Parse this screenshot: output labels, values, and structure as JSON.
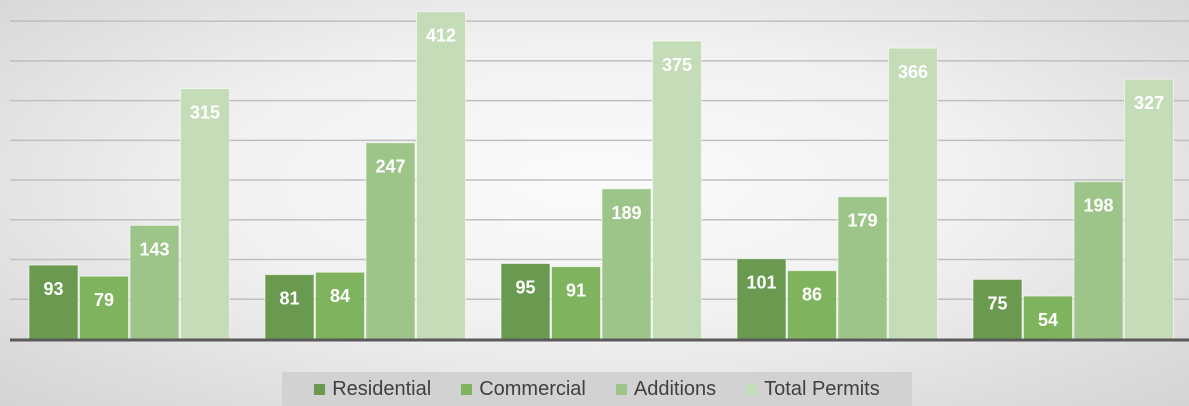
{
  "chart_data": {
    "type": "bar",
    "categories": [
      "",
      "",
      "",
      "",
      ""
    ],
    "series": [
      {
        "name": "Residential",
        "values": [
          93,
          81,
          95,
          101,
          75
        ],
        "color": "#6a9a50"
      },
      {
        "name": "Commercial",
        "values": [
          79,
          84,
          91,
          86,
          54
        ],
        "color": "#7fb35d"
      },
      {
        "name": "Additions",
        "values": [
          143,
          247,
          189,
          179,
          198
        ],
        "color": "#9ec589"
      },
      {
        "name": "Total Permits",
        "values": [
          315,
          412,
          375,
          366,
          327
        ],
        "color": "#c5dcb9"
      }
    ],
    "ylim": [
      0,
      420
    ],
    "grid": true,
    "data_labels": true,
    "legend_position": "bottom",
    "label_color": "#ffffff",
    "gridline_color": "#bfbfbf",
    "axis_color": "#5a5a5a"
  }
}
